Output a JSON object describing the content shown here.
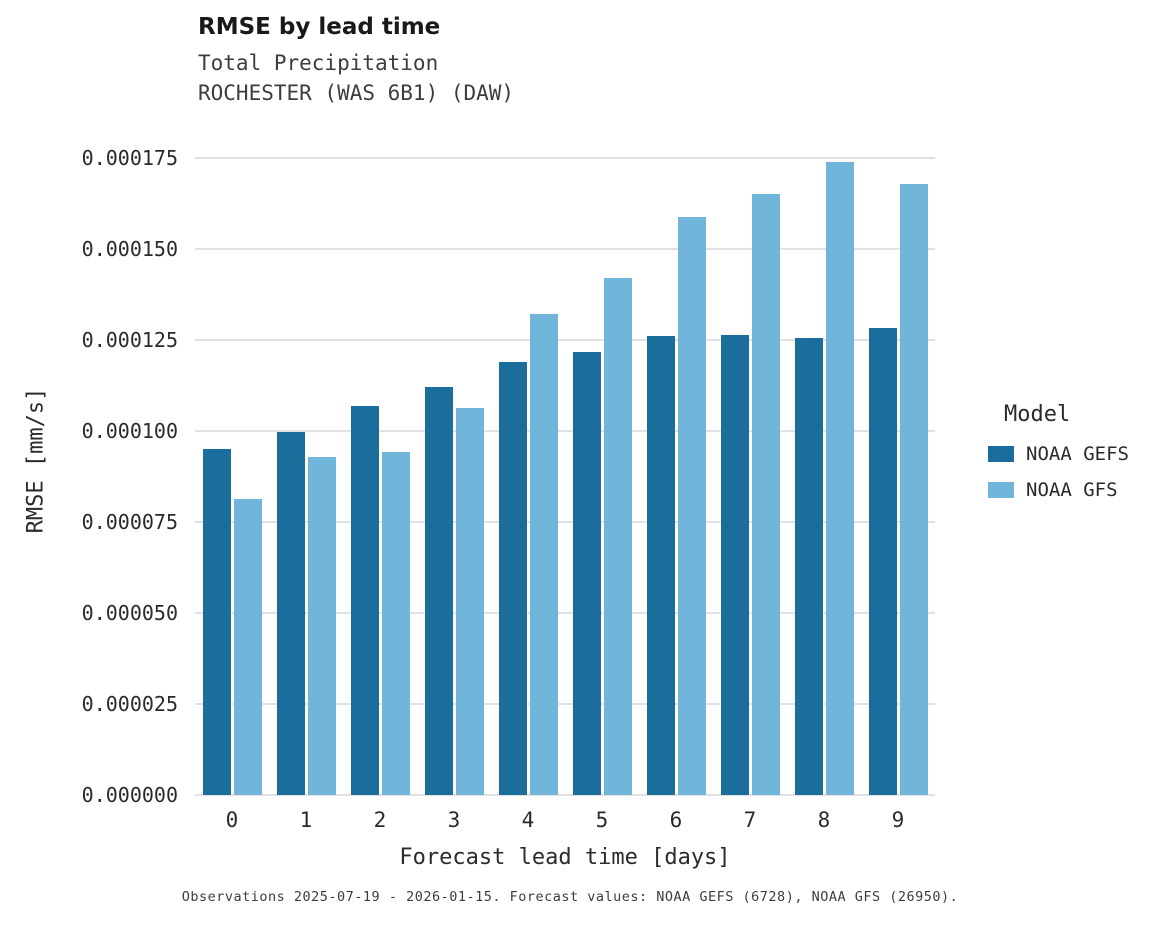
{
  "chart_data": {
    "type": "bar",
    "title": "RMSE by lead time",
    "subtitle": "Total Precipitation",
    "subtitle2": "ROCHESTER (WAS 6B1) (DAW)",
    "xlabel": "Forecast lead time [days]",
    "ylabel": "RMSE [mm/s]",
    "legend_title": "Model",
    "categories": [
      "0",
      "1",
      "2",
      "3",
      "4",
      "5",
      "6",
      "7",
      "8",
      "9"
    ],
    "series": [
      {
        "name": "NOAA GEFS",
        "color": "#1b6d9b",
        "values": [
          9.5e-05,
          9.97e-05,
          0.0001068,
          0.0001122,
          0.000119,
          0.0001217,
          0.0001262,
          0.0001263,
          0.0001255,
          0.0001283
        ]
      },
      {
        "name": "NOAA GFS",
        "color": "#72b5da",
        "values": [
          8.13e-05,
          9.28e-05,
          9.43e-05,
          0.0001064,
          0.0001322,
          0.0001419,
          0.0001588,
          0.0001652,
          0.0001738,
          0.0001679
        ]
      }
    ],
    "ytick_values": [
      0.0,
      2.5e-05,
      5e-05,
      7.5e-05,
      0.0001,
      0.000125,
      0.00015,
      0.000175
    ],
    "ytick_labels": [
      "0.000000",
      "0.000025",
      "0.000050",
      "0.000075",
      "0.000100",
      "0.000125",
      "0.000150",
      "0.000175"
    ],
    "ylim": [
      0,
      0.00017857
    ],
    "grid": true,
    "legend_position": "right",
    "caption": "Observations 2025-07-19 - 2026-01-15. Forecast values: NOAA GEFS (6728), NOAA GFS (26950)."
  }
}
